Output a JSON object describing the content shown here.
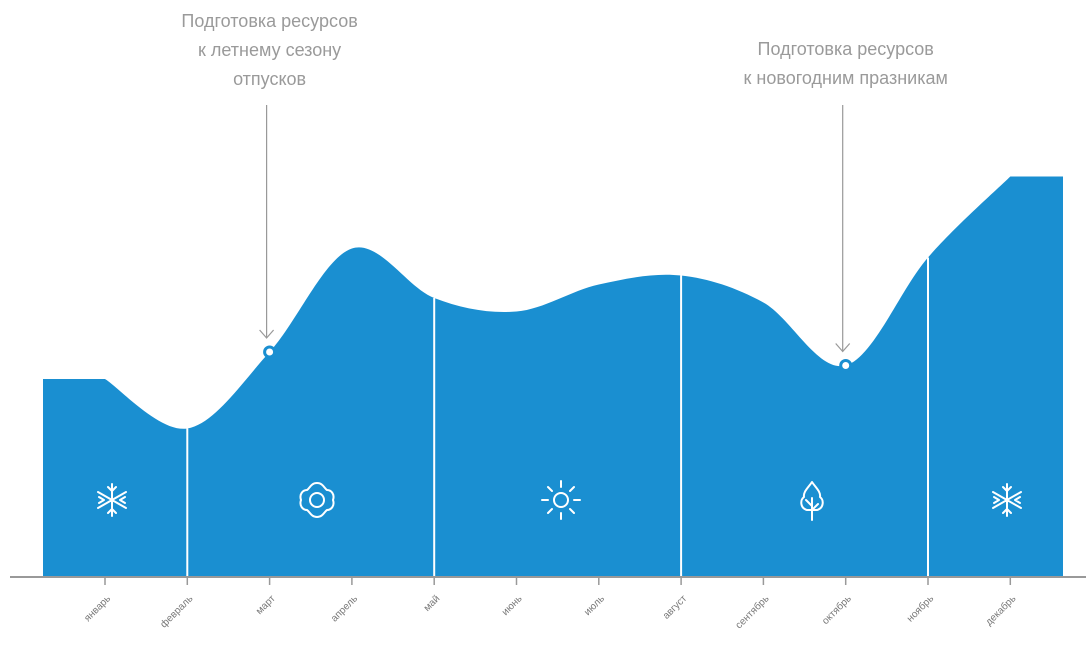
{
  "chart_data": {
    "type": "area",
    "color": "#1a8fd1",
    "categories": [
      "январь",
      "февраль",
      "март",
      "апрель",
      "май",
      "июнь",
      "июль",
      "август",
      "сентябрь",
      "октябрь",
      "ноябрь",
      "декабрь"
    ],
    "values": [
      44,
      33,
      50,
      73,
      62,
      59,
      65,
      67,
      61,
      47,
      71,
      89
    ],
    "annotations": [
      {
        "text": [
          "Подготовка ресурсов",
          "к летнему сезону",
          "отпусков"
        ]
      },
      {
        "text": [
          "Подготовка ресурсов",
          "к новогодним празникам"
        ]
      }
    ]
  }
}
